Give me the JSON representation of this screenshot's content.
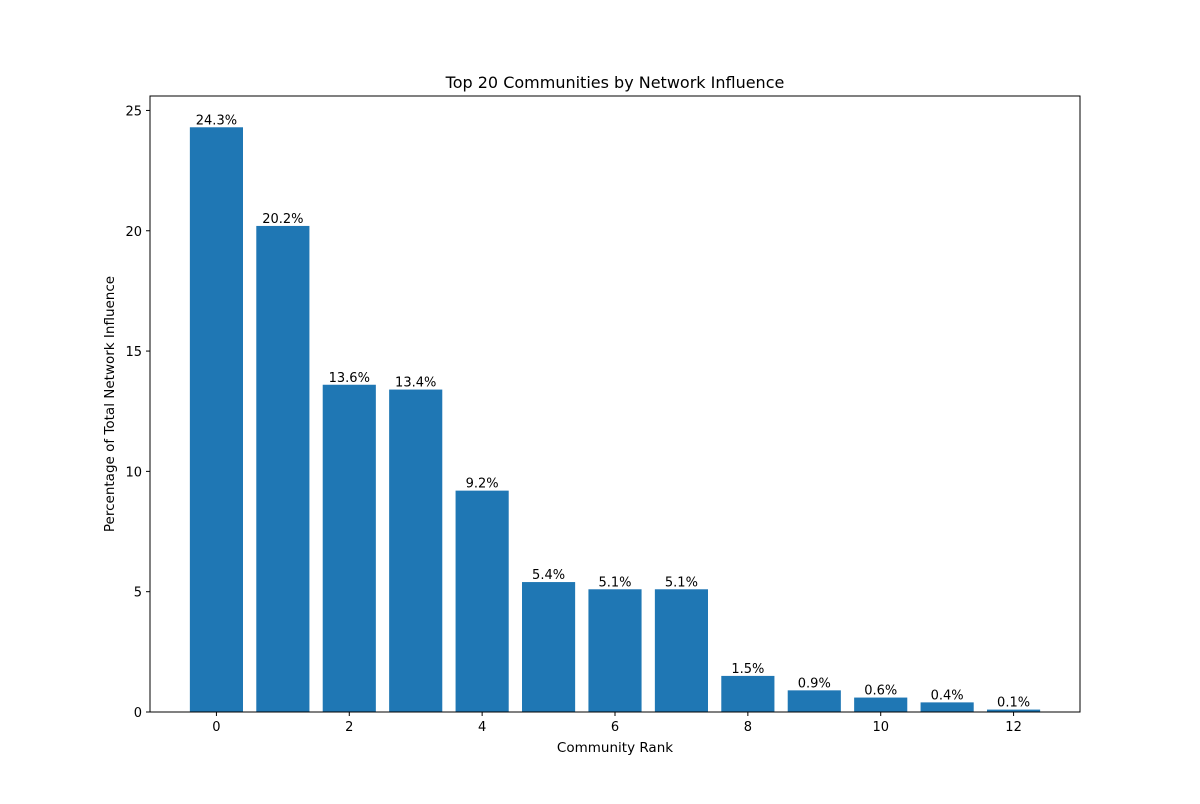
{
  "chart_data": {
    "type": "bar",
    "title": "Top 20 Communities by Network Influence",
    "xlabel": "Community Rank",
    "ylabel": "Percentage of Total Network Influence",
    "x": [
      0,
      1,
      2,
      3,
      4,
      5,
      6,
      7,
      8,
      9,
      10,
      11,
      12
    ],
    "values": [
      24.3,
      20.2,
      13.6,
      13.4,
      9.2,
      5.4,
      5.1,
      5.1,
      1.5,
      0.9,
      0.6,
      0.4,
      0.1
    ],
    "bar_labels": [
      "24.3%",
      "20.2%",
      "13.6%",
      "13.4%",
      "9.2%",
      "5.4%",
      "5.1%",
      "5.1%",
      "1.5%",
      "0.9%",
      "0.6%",
      "0.4%",
      "0.1%"
    ],
    "xlim": [
      -1.0,
      13.0
    ],
    "ylim": [
      0,
      25.6
    ],
    "xticks": [
      0,
      2,
      4,
      6,
      8,
      10,
      12
    ],
    "xtick_labels": [
      "0",
      "2",
      "4",
      "6",
      "8",
      "10",
      "12"
    ],
    "yticks": [
      0,
      5,
      10,
      15,
      20,
      25
    ],
    "ytick_labels": [
      "0",
      "5",
      "10",
      "15",
      "20",
      "25"
    ],
    "grid": false,
    "legend": "none",
    "bar_color": "#1f77b4"
  }
}
